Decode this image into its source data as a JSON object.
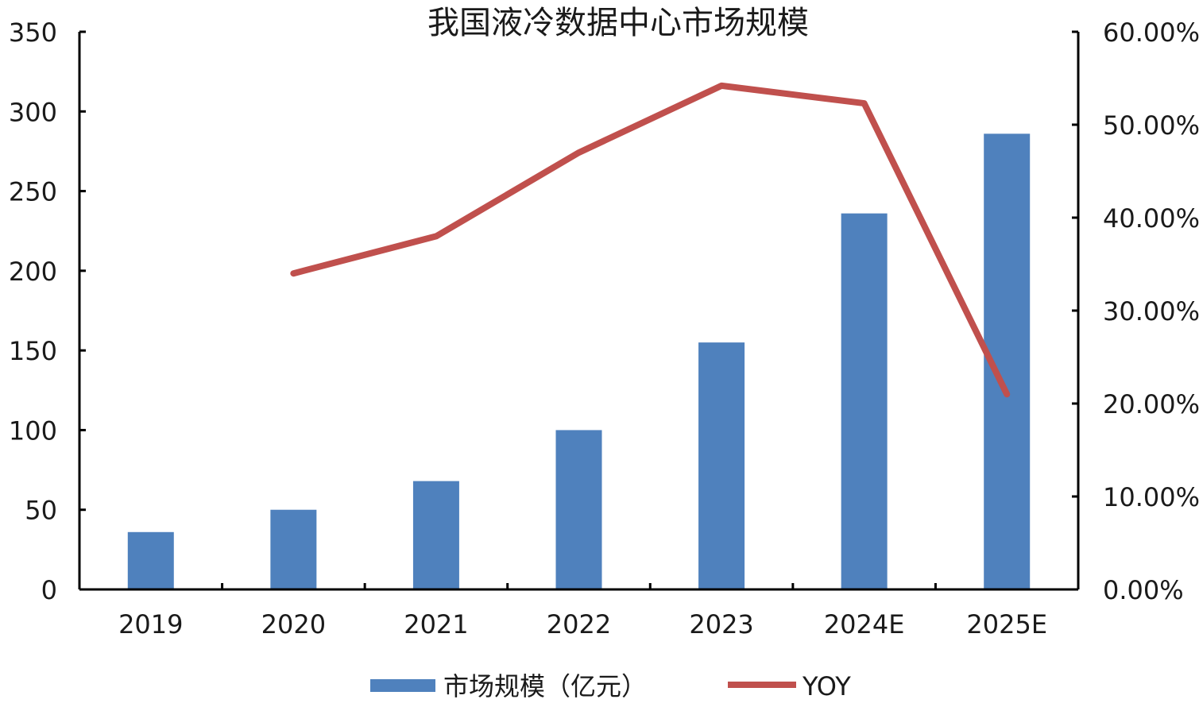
{
  "chart_data": {
    "type": "bar+line",
    "title": "我国液冷数据中心市场规模",
    "categories": [
      "2019",
      "2020",
      "2021",
      "2022",
      "2023",
      "2024E",
      "2025E"
    ],
    "series": [
      {
        "name": "市场规模（亿元）",
        "type": "bar",
        "axis": "left",
        "color": "#4f81bd",
        "values": [
          36,
          50,
          68,
          100,
          155,
          236,
          286
        ]
      },
      {
        "name": "YOY",
        "type": "line",
        "axis": "right",
        "color": "#c0504d",
        "values": [
          null,
          34.0,
          38.0,
          47.0,
          54.2,
          52.3,
          21.0
        ]
      }
    ],
    "left_axis": {
      "ylim": [
        0,
        350
      ],
      "ticks": [
        0,
        50,
        100,
        150,
        200,
        250,
        300,
        350
      ],
      "tick_labels": [
        "0",
        "50",
        "100",
        "150",
        "200",
        "250",
        "300",
        "350"
      ]
    },
    "right_axis": {
      "ylim": [
        0,
        60
      ],
      "ticks": [
        0,
        10,
        20,
        30,
        40,
        50,
        60
      ],
      "tick_labels": [
        "0.00%",
        "10.00%",
        "20.00%",
        "30.00%",
        "40.00%",
        "50.00%",
        "60.00%"
      ]
    },
    "grid": false,
    "legend": "bottom"
  }
}
